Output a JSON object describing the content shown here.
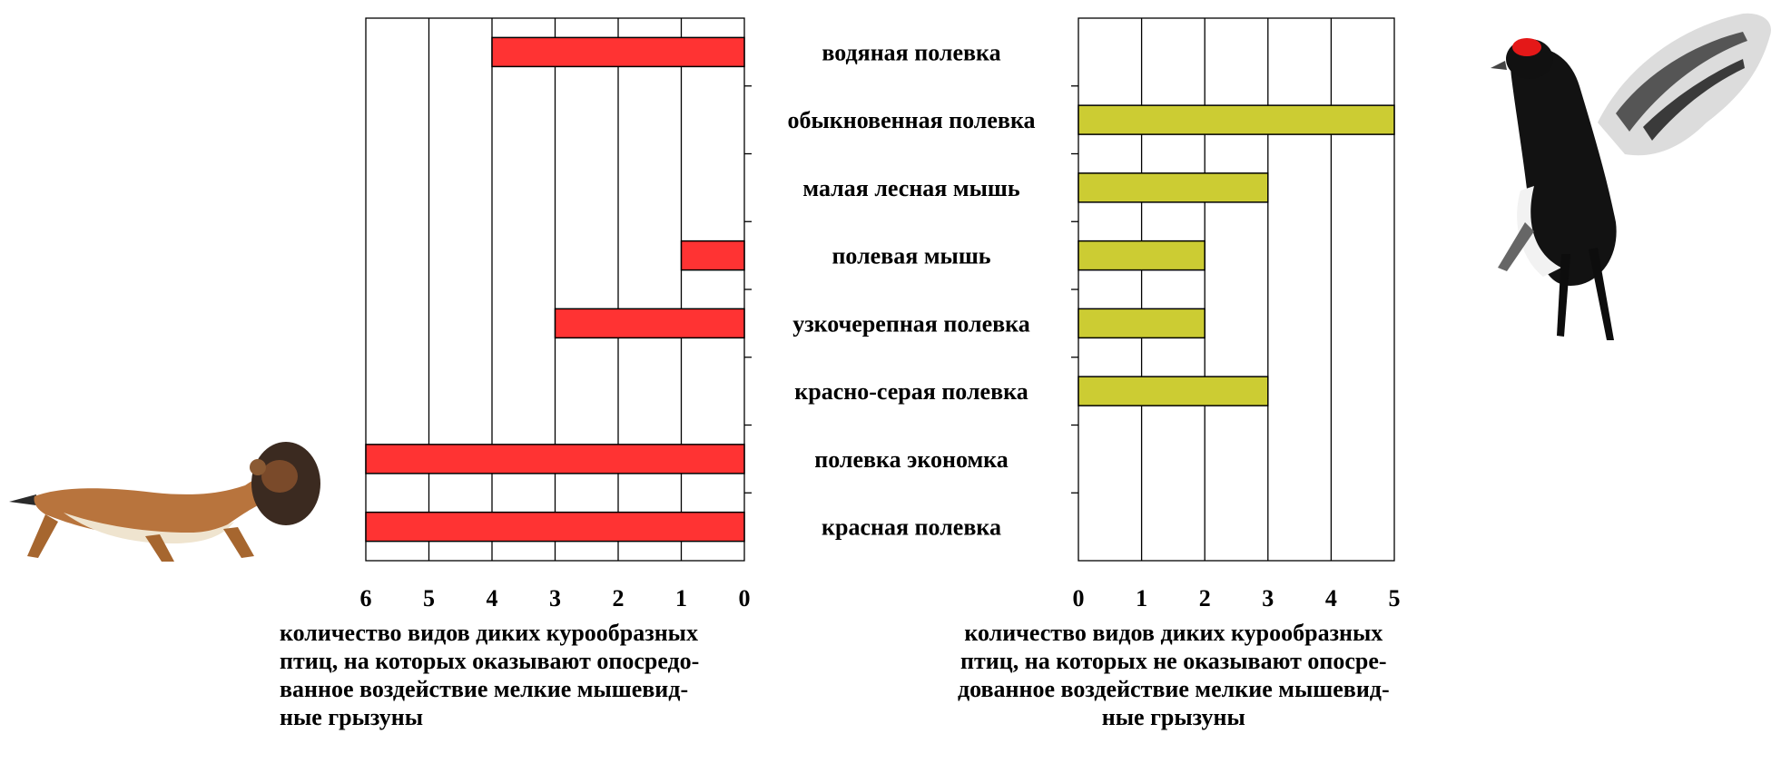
{
  "chart_data": [
    {
      "type": "bar",
      "orientation": "horizontal",
      "x_reversed": true,
      "categories": [
        "водяная полевка",
        "обыкновенная полевка",
        "малая лесная мышь",
        "полевая мышь",
        "узкочерепная полевка",
        "красно-серая полевка",
        "полевка экономка",
        "красная полевка"
      ],
      "values": [
        4,
        0,
        0,
        1,
        3,
        0,
        6,
        6
      ],
      "xlim": [
        0,
        6
      ],
      "ticks": [
        "6",
        "5",
        "4",
        "3",
        "2",
        "1",
        "0"
      ],
      "xlabel_lines": [
        "количество видов диких курообразных",
        "птиц, на которых оказывают опосредо-",
        "ванное воздействие мелкие мышевид-",
        "ные грызуны"
      ],
      "bar_color": "#ff3333",
      "grid": true
    },
    {
      "type": "bar",
      "orientation": "horizontal",
      "categories": [
        "водяная полевка",
        "обыкновенная полевка",
        "малая лесная мышь",
        "полевая мышь",
        "узкочерепная полевка",
        "красно-серая полевка",
        "полевка экономка",
        "красная полевка"
      ],
      "values": [
        0,
        5,
        3,
        2,
        2,
        3,
        0,
        0
      ],
      "xlim": [
        0,
        5
      ],
      "ticks": [
        "0",
        "1",
        "2",
        "3",
        "4",
        "5"
      ],
      "xlabel_lines": [
        "количество видов диких курообразных",
        "птиц, на которых  не оказывают опосре-",
        "дованное воздействие мелкие мышевид-",
        "ные грызуны"
      ],
      "bar_color": "#cccc33",
      "grid": true
    }
  ]
}
